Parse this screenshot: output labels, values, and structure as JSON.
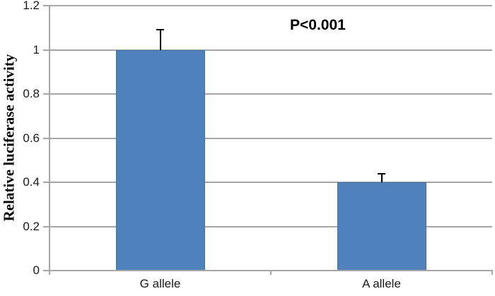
{
  "chart_data": {
    "type": "bar",
    "title": "",
    "annotation": "P<0.001",
    "categories": [
      "G allele",
      "A allele"
    ],
    "values": [
      1.0,
      0.4
    ],
    "errors_plus": [
      0.09,
      0.04
    ],
    "xlabel": "",
    "ylabel": "Relative luciferase activity",
    "ylim": [
      0,
      1.2
    ],
    "yticks": [
      0,
      0.2,
      0.4,
      0.6,
      0.8,
      1,
      1.2
    ],
    "ytick_labels": [
      "0",
      "0.2",
      "0.4",
      "0.6",
      "0.8",
      "1",
      "1.2"
    ],
    "grid": true,
    "legend": false,
    "colors": {
      "bar": "#4F81BD",
      "bar_edge": "#44729F",
      "axis": "#A6A6A6",
      "gridline": "#A6A6A6",
      "error_bar": "#000000",
      "text": "#1a1a1a"
    }
  }
}
